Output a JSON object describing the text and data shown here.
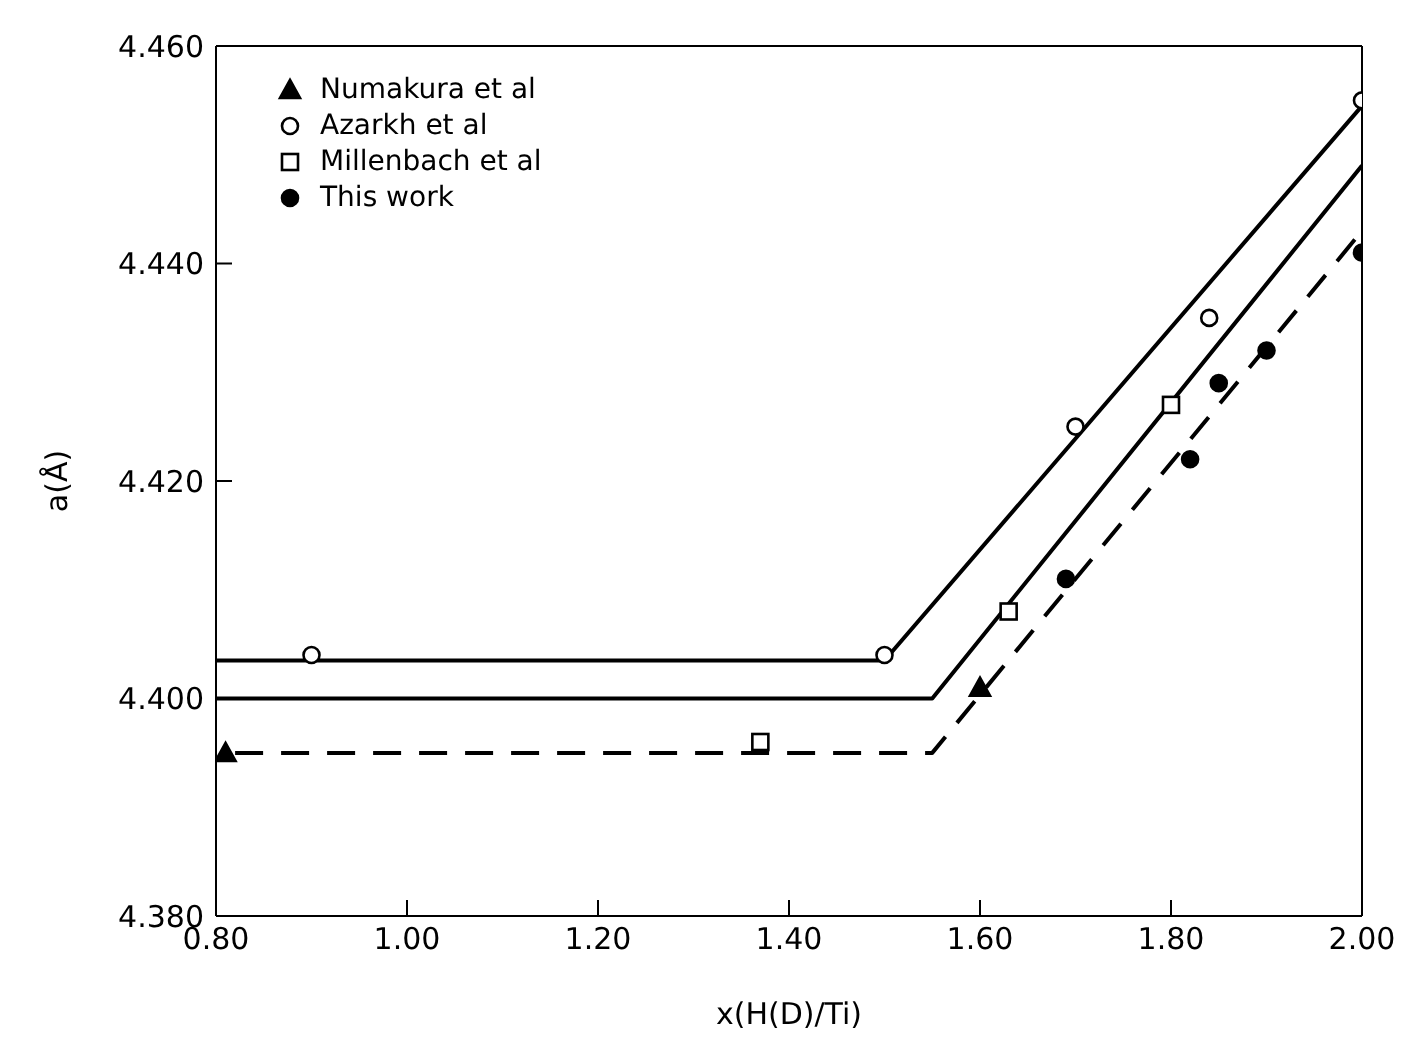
{
  "chart_data": {
    "type": "scatter",
    "xlabel": "x(H(D)/Ti)",
    "ylabel": "a(Å)",
    "xlim": [
      0.8,
      2.0
    ],
    "ylim": [
      4.38,
      4.46
    ],
    "xticks": [
      {
        "value": 0.8,
        "label": "0.80"
      },
      {
        "value": 1.0,
        "label": "1.00"
      },
      {
        "value": 1.2,
        "label": "1.20"
      },
      {
        "value": 1.4,
        "label": "1.40"
      },
      {
        "value": 1.6,
        "label": "1.60"
      },
      {
        "value": 1.8,
        "label": "1.80"
      },
      {
        "value": 2.0,
        "label": "2.00"
      }
    ],
    "yticks": [
      {
        "value": 4.38,
        "label": "4.380"
      },
      {
        "value": 4.4,
        "label": "4.400"
      },
      {
        "value": 4.42,
        "label": "4.420"
      },
      {
        "value": 4.44,
        "label": "4.440"
      },
      {
        "value": 4.46,
        "label": "4.460"
      }
    ],
    "grid": false,
    "legend": "top left",
    "series": [
      {
        "name": "Numakura et al",
        "color": "#000000",
        "marker": "triangle",
        "x": [
          0.81,
          1.6
        ],
        "values": [
          4.395,
          4.401
        ]
      },
      {
        "name": "Azarkh et al",
        "color": "#ffffff",
        "marker": "circle",
        "x": [
          0.9,
          1.5,
          1.7,
          1.84,
          2.0
        ],
        "values": [
          4.404,
          4.404,
          4.425,
          4.435,
          4.455
        ]
      },
      {
        "name": "Millenbach et al",
        "color": "#ffffff",
        "marker": "square",
        "x": [
          1.37,
          1.63,
          1.8
        ],
        "values": [
          4.396,
          4.408,
          4.427
        ]
      },
      {
        "name": "This work",
        "color": "#000000",
        "marker": "circle",
        "x": [
          1.69,
          1.82,
          1.85,
          1.9,
          2.0
        ],
        "values": [
          4.411,
          4.422,
          4.429,
          4.432,
          4.441
        ]
      },
      {
        "type": "line",
        "color": "#000000",
        "marker": "none",
        "line_style": "solid",
        "x": [
          0.8,
          1.5,
          2.0
        ],
        "values": [
          4.4035,
          4.4035,
          4.4545
        ]
      },
      {
        "type": "line",
        "color": "#000000",
        "marker": "none",
        "line_style": "solid",
        "x": [
          0.8,
          1.55,
          2.0
        ],
        "values": [
          4.4,
          4.4,
          4.449
        ]
      },
      {
        "type": "line",
        "color": "#000000",
        "marker": "none",
        "line_style": "dashed",
        "x": [
          0.82,
          1.55,
          2.0
        ],
        "values": [
          4.395,
          4.395,
          4.443
        ]
      }
    ]
  }
}
